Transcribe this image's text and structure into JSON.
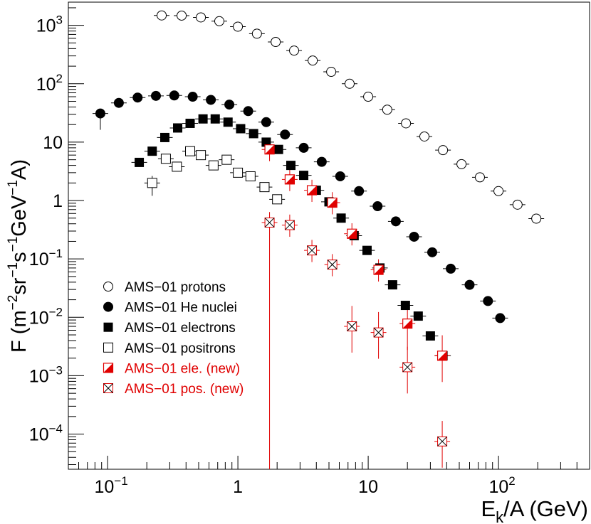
{
  "chart_data": {
    "type": "scatter",
    "title": "",
    "xlabel": {
      "base": "E",
      "sub": "k",
      "rest": "/A (GeV)"
    },
    "ylabel": {
      "pre": "F (m",
      "e1": "−2",
      "m1": "sr",
      "e2": "−1",
      "m2": "s",
      "e3": "−1",
      "m3": "GeV",
      "e4": "−1",
      "post": "A)"
    },
    "x_scale": "log",
    "y_scale": "log",
    "xlim": [
      0.05,
      500
    ],
    "ylim": [
      2.5e-05,
      2500
    ],
    "x_tick_labels": [
      {
        "value": 0.1,
        "base": "10",
        "exp": "−1"
      },
      {
        "value": 1,
        "base": "1",
        "exp": ""
      },
      {
        "value": 10,
        "base": "10",
        "exp": ""
      },
      {
        "value": 100,
        "base": "10",
        "exp": "2"
      }
    ],
    "y_tick_labels": [
      {
        "value": 0.0001,
        "base": "10",
        "exp": "−4"
      },
      {
        "value": 0.001,
        "base": "10",
        "exp": "−3"
      },
      {
        "value": 0.01,
        "base": "10",
        "exp": "−2"
      },
      {
        "value": 0.1,
        "base": "10",
        "exp": "−1"
      },
      {
        "value": 1,
        "base": "1",
        "exp": ""
      },
      {
        "value": 10,
        "base": "10",
        "exp": ""
      },
      {
        "value": 100,
        "base": "10",
        "exp": "2"
      },
      {
        "value": 1000,
        "base": "10",
        "exp": "3"
      }
    ],
    "grid": false,
    "legend_position": "bottom-left",
    "series": [
      {
        "name": "AMS−01 protons",
        "marker": "open-circle",
        "color": "#000000",
        "x": [
          0.26,
          0.37,
          0.52,
          0.72,
          1.0,
          1.4,
          1.95,
          2.7,
          3.75,
          5.2,
          7.2,
          10.0,
          14.0,
          19.5,
          27,
          37.5,
          52,
          72,
          100,
          140,
          195
        ],
        "y": [
          1480,
          1470,
          1370,
          1180,
          950,
          720,
          520,
          370,
          250,
          160,
          100,
          60,
          36,
          21,
          12.5,
          7.3,
          4.2,
          2.5,
          1.45,
          0.85,
          0.49
        ]
      },
      {
        "name": "AMS−01 He nuclei",
        "marker": "filled-circle",
        "color": "#000000",
        "x": [
          0.088,
          0.122,
          0.17,
          0.235,
          0.325,
          0.45,
          0.62,
          0.86,
          1.2,
          1.65,
          2.3,
          3.2,
          4.4,
          6.1,
          8.5,
          11.8,
          16.3,
          22.5,
          31,
          43,
          60,
          83,
          103
        ],
        "y": [
          31,
          47,
          58,
          62,
          63,
          60,
          53,
          44,
          34,
          22,
          13.5,
          8.0,
          4.6,
          2.6,
          1.45,
          0.8,
          0.44,
          0.24,
          0.13,
          0.068,
          0.036,
          0.019,
          0.0097
        ]
      },
      {
        "name": "AMS−01 electrons",
        "marker": "filled-square",
        "color": "#000000",
        "x": [
          0.175,
          0.22,
          0.275,
          0.345,
          0.43,
          0.54,
          0.67,
          0.84,
          1.05,
          1.32,
          1.65,
          2.05,
          2.55,
          3.2,
          4.0,
          5.0,
          6.2,
          7.8,
          9.8,
          12.3,
          15.4,
          19.3,
          24.2,
          30,
          37.5
        ],
        "y": [
          4.5,
          7.0,
          12.0,
          17.5,
          21.0,
          25.0,
          25.0,
          22.0,
          17.0,
          14.0,
          10.0,
          7.5,
          4.0,
          2.7,
          1.5,
          0.95,
          0.5,
          0.25,
          0.14,
          0.07,
          0.036,
          0.016,
          0.0105,
          0.0048,
          0.0022
        ]
      },
      {
        "name": "AMS−01 positrons",
        "marker": "open-square",
        "color": "#000000",
        "x": [
          0.22,
          0.28,
          0.34,
          0.43,
          0.52,
          0.65,
          0.82,
          1.0,
          1.25,
          1.6,
          2.0
        ],
        "y": [
          2.0,
          5.2,
          3.8,
          7.0,
          6.0,
          4.0,
          5.0,
          3.0,
          2.6,
          1.7,
          1.05
        ]
      },
      {
        "name": "AMS−01 ele. (new)",
        "marker": "half-filled-square",
        "color": "#e00000",
        "x": [
          1.75,
          2.5,
          3.7,
          5.3,
          7.5,
          12.0,
          20.0,
          37.0
        ],
        "y": [
          7.5,
          2.3,
          1.5,
          0.92,
          0.27,
          0.065,
          0.0078,
          0.0022
        ]
      },
      {
        "name": "AMS−01 pos. (new)",
        "marker": "crossed-square",
        "color": "#e00000",
        "x": [
          1.75,
          2.5,
          3.7,
          5.3,
          7.5,
          12.0,
          20.0,
          37.0
        ],
        "y": [
          0.42,
          0.38,
          0.14,
          0.08,
          0.007,
          0.0055,
          0.0014,
          7.5e-05
        ]
      }
    ]
  }
}
